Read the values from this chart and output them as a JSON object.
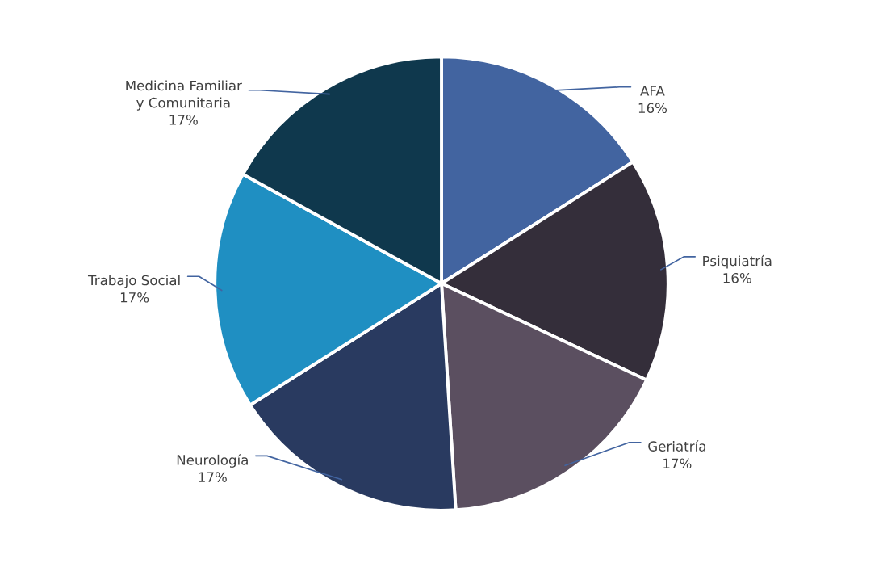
{
  "chart_data": {
    "type": "pie",
    "categories": [
      "AFA",
      "Psiquiatría",
      "Geriatría",
      "Neurología",
      "Trabajo Social",
      "Medicina Familiar\ny Comunitaria"
    ],
    "values": [
      16,
      16,
      17,
      17,
      17,
      17
    ],
    "value_labels": [
      "16%",
      "16%",
      "17%",
      "17%",
      "17%",
      "17%"
    ],
    "colors": [
      "#4264a0",
      "#342e3a",
      "#5b4f60",
      "#293a60",
      "#1f8fc2",
      "#0f384d"
    ],
    "legend": false
  }
}
